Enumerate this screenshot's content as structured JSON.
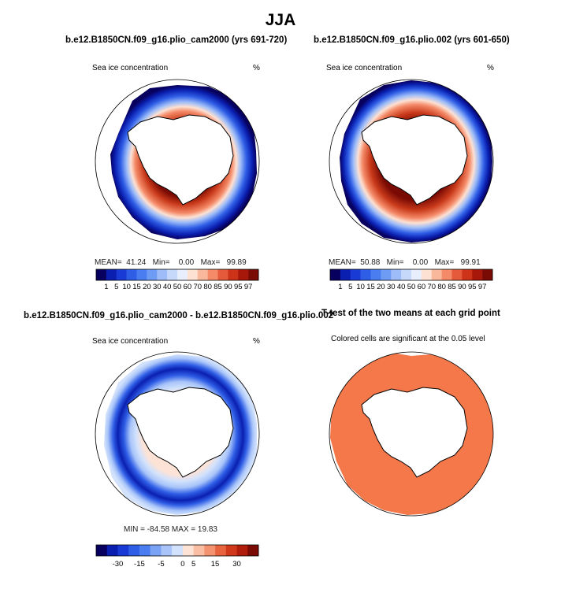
{
  "figure": {
    "title": "JJA"
  },
  "panels": {
    "p1": {
      "title": "b.e12.B1850CN.f09_g16.plio_cam2000 (yrs 691-720)",
      "left_label": "Sea ice concentration",
      "right_label": "%",
      "mean_label": "MEAN=",
      "mean_value": "41.24",
      "min_label": "Min=",
      "min_value": "0.00",
      "max_label": "Max=",
      "max_value": "99.89"
    },
    "p2": {
      "title": "b.e12.B1850CN.f09_g16.plio.002 (yrs 601-650)",
      "left_label": "Sea ice concentration",
      "right_label": "%",
      "mean_label": "MEAN=",
      "mean_value": "50.88",
      "min_label": "Min=",
      "min_value": "0.00",
      "max_label": "Max=",
      "max_value": "99.91"
    },
    "p3": {
      "title": "b.e12.B1850CN.f09_g16.plio_cam2000 - b.e12.B1850CN.f09_g16.plio.002",
      "left_label": "Sea ice concentration",
      "right_label": "%",
      "minmax_text": "MIN = -84.58 MAX =  19.83"
    },
    "p4": {
      "title": "T-test of the two means at each grid point",
      "subtitle": "Colored cells are significant at the 0.05 level"
    }
  },
  "colorbars": {
    "concentration": {
      "labels": [
        "1",
        "5",
        "10",
        "15",
        "20",
        "30",
        "40",
        "50",
        "60",
        "70",
        "80",
        "85",
        "90",
        "95",
        "97"
      ],
      "colors": [
        "#08005e",
        "#0a1fb0",
        "#1a3ad6",
        "#2f5ee6",
        "#4a7ef0",
        "#6e9cf5",
        "#9dbcf8",
        "#c6d9fb",
        "#e8eefc",
        "#fde1d3",
        "#f9b89c",
        "#f48a68",
        "#e65a3c",
        "#cc3318",
        "#a8180a",
        "#7a0a04"
      ]
    },
    "difference": {
      "labels": [
        "-30",
        "-15",
        "-5",
        "0",
        "5",
        "15",
        "30"
      ],
      "colors": [
        "#08005e",
        "#0a1fb0",
        "#1a3ad6",
        "#2f5ee6",
        "#4a7ef0",
        "#7aa2f5",
        "#a8c4f9",
        "#d2e2fc",
        "#fde3d6",
        "#f9bea4",
        "#f4936f",
        "#e8643f",
        "#d03a1a",
        "#b01d0a",
        "#7a0a04"
      ]
    }
  },
  "map_colors": {
    "ocean_ring_blue": "#0a2ab5",
    "ice_core_red": "#c8391a",
    "significance_fill": "#f5784a",
    "continent": "#ffffff"
  }
}
